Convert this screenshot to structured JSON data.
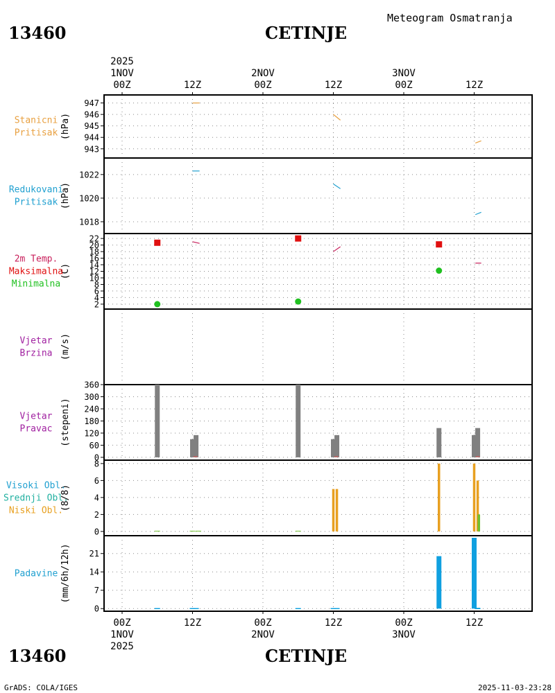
{
  "header": {
    "station_id": "13460",
    "station_name": "CETINJE",
    "product_title": "Meteogram Osmatranja",
    "start_year": "2025"
  },
  "footer": {
    "credit": "GrADS: COLA/IGES",
    "timestamp": "2025-11-03-23:28"
  },
  "time_axis": {
    "top_ticks": [
      {
        "h": 0,
        "l1": "00Z",
        "l2": "1NOV",
        "l3": "2025"
      },
      {
        "h": 12,
        "l1": "12Z"
      },
      {
        "h": 24,
        "l1": "00Z",
        "l2": "2NOV"
      },
      {
        "h": 36,
        "l1": "12Z"
      },
      {
        "h": 48,
        "l1": "00Z",
        "l2": "3NOV"
      },
      {
        "h": 60,
        "l1": "12Z"
      }
    ],
    "bottom_ticks": [
      {
        "h": 0,
        "l1": "00Z",
        "l2": "1NOV",
        "l3": "2025"
      },
      {
        "h": 12,
        "l1": "12Z"
      },
      {
        "h": 24,
        "l1": "00Z",
        "l2": "2NOV"
      },
      {
        "h": 36,
        "l1": "12Z"
      },
      {
        "h": 48,
        "l1": "00Z",
        "l2": "3NOV"
      },
      {
        "h": 60,
        "l1": "12Z"
      }
    ],
    "grid_hours": [
      0,
      12,
      24,
      36,
      48,
      60
    ]
  },
  "chart_data": [
    {
      "id": "station_pressure",
      "type": "line",
      "labels": [
        "Stanicni",
        "Pritisak"
      ],
      "label_color": "#e8a040",
      "ylabel": "(hPa)",
      "ylim": [
        942.2,
        947.7
      ],
      "yticks": [
        943,
        944,
        945,
        946,
        947
      ],
      "series": [
        {
          "color": "#e8a040",
          "segments": [
            [
              [
                12,
                947.0
              ],
              [
                13.2,
                947.0
              ]
            ],
            [
              [
                36,
                946.0
              ],
              [
                37.2,
                945.5
              ]
            ],
            [
              [
                60.2,
                943.5
              ],
              [
                61.2,
                943.7
              ]
            ]
          ]
        }
      ]
    },
    {
      "id": "reduced_pressure",
      "type": "line",
      "labels": [
        "Redukovani",
        "Pritisak"
      ],
      "label_color": "#20a0d0",
      "ylabel": "(hPa)",
      "ylim": [
        1017,
        1023.4
      ],
      "yticks": [
        1018,
        1020,
        1022
      ],
      "series": [
        {
          "color": "#20a0d0",
          "segments": [
            [
              [
                12,
                1022.3
              ],
              [
                13.2,
                1022.3
              ]
            ],
            [
              [
                36,
                1021.2
              ],
              [
                37.2,
                1020.8
              ]
            ],
            [
              [
                60.2,
                1018.6
              ],
              [
                61.2,
                1018.8
              ]
            ]
          ]
        }
      ]
    },
    {
      "id": "temperature",
      "type": "scatter",
      "labels": [
        "2m Temp.",
        "Maksimalna",
        "Minimalna"
      ],
      "label_colors": [
        "#c81e5a",
        "#e01010",
        "#20c020"
      ],
      "ylabel": "(C)",
      "ylim": [
        0.5,
        23.5
      ],
      "yticks": [
        2,
        4,
        6,
        8,
        10,
        12,
        14,
        16,
        18,
        20,
        22
      ],
      "series": [
        {
          "name": "2m Temp.",
          "color": "#c81e5a",
          "segments": [
            [
              [
                12,
                21.0
              ],
              [
                13.2,
                20.5
              ]
            ],
            [
              [
                36,
                18.0
              ],
              [
                37.2,
                19.5
              ]
            ],
            [
              [
                60.2,
                14.5
              ],
              [
                61.2,
                14.5
              ]
            ]
          ]
        },
        {
          "name": "Maksimalna",
          "color": "#e01010",
          "shape": "square",
          "points": [
            [
              6,
              20.7
            ],
            [
              30,
              22.0
            ],
            [
              54,
              20.2
            ]
          ]
        },
        {
          "name": "Minimalna",
          "color": "#20c020",
          "shape": "circle",
          "points": [
            [
              6,
              2.0
            ],
            [
              30,
              2.8
            ],
            [
              54,
              12.2
            ]
          ]
        }
      ]
    },
    {
      "id": "wind_speed",
      "type": "bar",
      "labels": [
        "Vjetar",
        "Brzina"
      ],
      "label_color": "#a020a0",
      "ylabel": "(m/s)",
      "ylim": [
        0,
        1
      ],
      "yticks": [],
      "series": []
    },
    {
      "id": "wind_direction",
      "type": "bar",
      "labels": [
        "Vjetar",
        "Pravac"
      ],
      "label_color": "#a020a0",
      "ylabel": "(stepeni)",
      "ylim": [
        -14,
        360
      ],
      "yticks": [
        0,
        60,
        120,
        180,
        240,
        300,
        360
      ],
      "bar_color": "#808080",
      "bars": [
        [
          6,
          360
        ],
        [
          12,
          90
        ],
        [
          12.6,
          110
        ],
        [
          30,
          360
        ],
        [
          36,
          90
        ],
        [
          36.6,
          110
        ],
        [
          54,
          145
        ],
        [
          60,
          110
        ],
        [
          60.6,
          145
        ]
      ],
      "markers": {
        "color": "#e05050",
        "hours": [
          12.5,
          36.5,
          60.6
        ]
      }
    },
    {
      "id": "clouds",
      "type": "bar",
      "labels": [
        "Visoki Obl.",
        "Srednji Obl.",
        "Niski Obl."
      ],
      "label_colors": [
        "#20a0d0",
        "#20b0a0",
        "#e8a020"
      ],
      "ylabel": "(8/8)",
      "ylim": [
        -0.5,
        8.4
      ],
      "yticks": [
        0,
        2,
        4,
        6,
        8
      ],
      "series": [
        {
          "name": "Niski Obl.",
          "color": "#e8a020",
          "bars": [
            [
              36,
              5
            ],
            [
              36.6,
              5
            ],
            [
              54,
              8
            ],
            [
              60,
              8
            ],
            [
              60.6,
              6
            ]
          ]
        },
        {
          "name": "Srednji Obl.",
          "color": "#70c030",
          "bars": [
            [
              60.8,
              2
            ]
          ]
        }
      ],
      "base_ticks": {
        "color": "#70c030",
        "hours": [
          6,
          12,
          13,
          30
        ]
      }
    },
    {
      "id": "precipitation",
      "type": "bar",
      "labels": [
        "Padavine"
      ],
      "label_color": "#20a0d0",
      "ylabel": "(mm/6h/12h)",
      "ylim": [
        -1,
        27.8
      ],
      "yticks": [
        0,
        7,
        14,
        21
      ],
      "series": [
        {
          "name": "Padavine",
          "color": "#10a0e0",
          "bars": [
            [
              54,
              20
            ],
            [
              60,
              27
            ],
            [
              60.6,
              0.3
            ]
          ]
        }
      ],
      "trace_hours": [
        6,
        12,
        12.6,
        30,
        36,
        36.6,
        60.6
      ]
    }
  ]
}
